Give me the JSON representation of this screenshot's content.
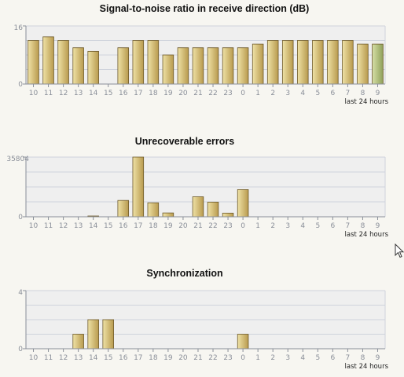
{
  "charts": [
    {
      "chart_data": {
        "type": "bar",
        "title": "Signal-to-noise ratio in receive direction (dB)",
        "categories": [
          "10",
          "11",
          "12",
          "13",
          "14",
          "15",
          "16",
          "17",
          "18",
          "19",
          "20",
          "21",
          "22",
          "23",
          "0",
          "1",
          "2",
          "3",
          "4",
          "5",
          "6",
          "7",
          "8",
          "9"
        ],
        "values": [
          12,
          13,
          12,
          10,
          9,
          0,
          10,
          12,
          12,
          8,
          10,
          10,
          10,
          10,
          10,
          11,
          12,
          12,
          12,
          12,
          12,
          12,
          11,
          11
        ],
        "ylim": [
          0,
          16
        ],
        "yticks": [
          "0",
          "16"
        ],
        "xnote": "last 24 hours",
        "highlight_last": true,
        "grid": true
      }
    },
    {
      "chart_data": {
        "type": "bar",
        "title": "Unrecoverable errors",
        "categories": [
          "10",
          "11",
          "12",
          "13",
          "14",
          "15",
          "16",
          "17",
          "18",
          "19",
          "20",
          "21",
          "22",
          "23",
          "0",
          "1",
          "2",
          "3",
          "4",
          "5",
          "6",
          "7",
          "8",
          "9"
        ],
        "values": [
          0,
          0,
          0,
          0,
          400,
          0,
          9800,
          35804,
          8400,
          2300,
          0,
          12000,
          8800,
          2200,
          16300,
          0,
          0,
          0,
          0,
          0,
          0,
          0,
          0,
          0
        ],
        "ylim": [
          0,
          35804
        ],
        "yticks": [
          "0",
          "35804"
        ],
        "xnote": "last 24 hours",
        "highlight_last": false,
        "grid": true
      }
    },
    {
      "chart_data": {
        "type": "bar",
        "title": "Synchronization",
        "categories": [
          "10",
          "11",
          "12",
          "13",
          "14",
          "15",
          "16",
          "17",
          "18",
          "19",
          "20",
          "21",
          "22",
          "23",
          "0",
          "1",
          "2",
          "3",
          "4",
          "5",
          "6",
          "7",
          "8",
          "9"
        ],
        "values": [
          0,
          0,
          0,
          1,
          2,
          2,
          0,
          0,
          0,
          0,
          0,
          0,
          0,
          0,
          1,
          0,
          0,
          0,
          0,
          0,
          0,
          0,
          0,
          0
        ],
        "ylim": [
          0,
          4
        ],
        "yticks": [
          "0",
          "4"
        ],
        "xnote": "last 24 hours",
        "highlight_last": false,
        "grid": true
      }
    }
  ],
  "colors": {
    "plot_bg": "#efefef",
    "grid": "#cfd3dc",
    "axis": "#8a8f99",
    "bar_fill_light": "#efe2a6",
    "bar_fill_dark": "#b89a4e",
    "bar_stroke": "#6e5a2a",
    "bar_last_light": "#d6dfa6",
    "bar_last_dark": "#8fa05a"
  }
}
